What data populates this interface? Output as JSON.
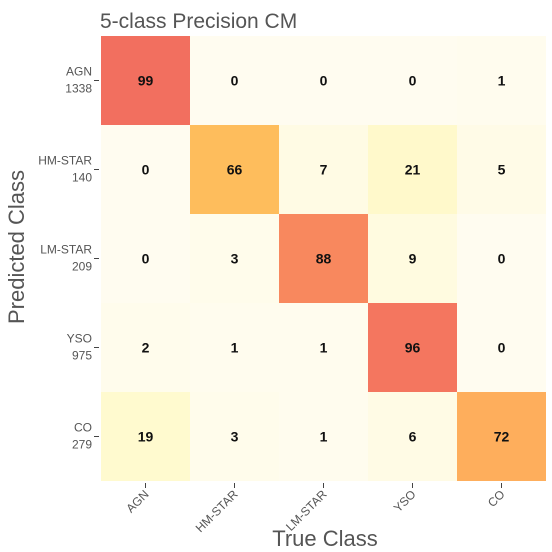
{
  "chart_data": {
    "type": "heatmap",
    "title": "5-class Precision CM",
    "xlabel": "True Class",
    "ylabel": "Predicted Class",
    "x_categories": [
      "AGN",
      "HM-STAR",
      "LM-STAR",
      "YSO",
      "CO"
    ],
    "y_categories": [
      {
        "name": "AGN",
        "count": "1338"
      },
      {
        "name": "HM-STAR",
        "count": "140"
      },
      {
        "name": "LM-STAR",
        "count": "209"
      },
      {
        "name": "YSO",
        "count": "975"
      },
      {
        "name": "CO",
        "count": "279"
      }
    ],
    "values": [
      [
        99,
        0,
        0,
        0,
        1
      ],
      [
        0,
        66,
        7,
        21,
        5
      ],
      [
        0,
        3,
        88,
        9,
        0
      ],
      [
        2,
        1,
        1,
        96,
        0
      ],
      [
        19,
        3,
        1,
        6,
        72
      ]
    ],
    "range": [
      0,
      100
    ],
    "colormap": [
      "#fffcf0",
      "#fff9c4",
      "#ffe75c",
      "#fea65c",
      "#f26d5f"
    ]
  }
}
